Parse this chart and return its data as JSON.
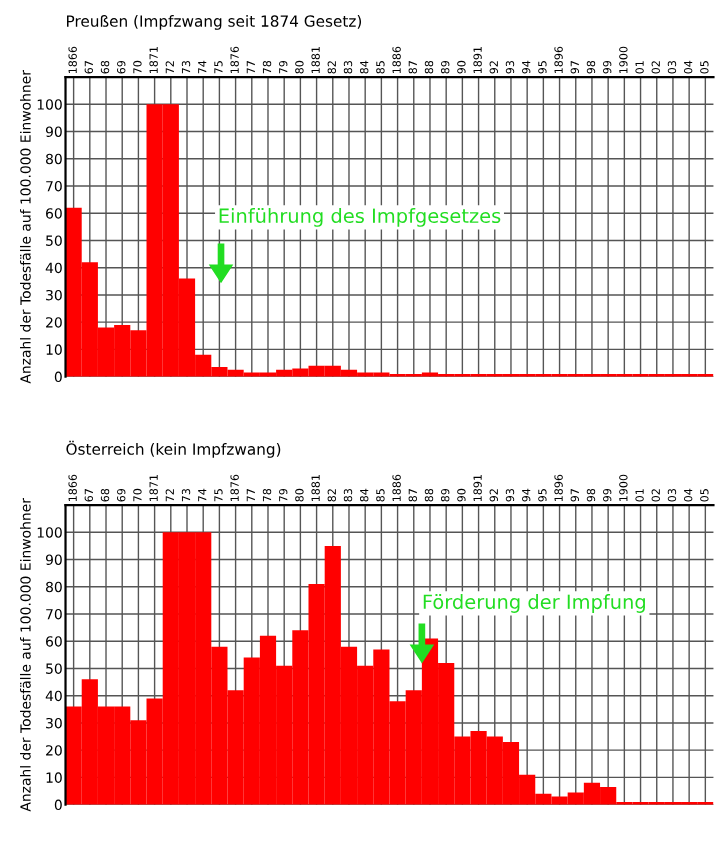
{
  "chart_data": [
    {
      "type": "bar",
      "title": "Preußen (Impfzwang seit 1874 Gesetz)",
      "ylabel": "Anzahl der Todesfälle auf 100.000 Einwohner",
      "categories": [
        "1866",
        "67",
        "68",
        "69",
        "70",
        "1871",
        "72",
        "73",
        "74",
        "75",
        "1876",
        "77",
        "78",
        "79",
        "80",
        "1881",
        "82",
        "83",
        "84",
        "85",
        "1886",
        "87",
        "88",
        "89",
        "90",
        "1891",
        "92",
        "93",
        "94",
        "95",
        "1896",
        "97",
        "98",
        "99",
        "1900",
        "01",
        "02",
        "03",
        "04",
        "05"
      ],
      "values": [
        62,
        42,
        18,
        19,
        17,
        100,
        100,
        36,
        8,
        3.5,
        2.5,
        1.5,
        1.5,
        2.5,
        3,
        4,
        4,
        2.5,
        1.5,
        1.5,
        1,
        1,
        1.5,
        1,
        1,
        1,
        1,
        1,
        1,
        1,
        1,
        1,
        1,
        1,
        1,
        1,
        1,
        1,
        1,
        1
      ],
      "color": "#ff0000",
      "ylim": [
        0,
        110
      ],
      "yticks": [
        0,
        10,
        20,
        30,
        40,
        50,
        60,
        70,
        80,
        90,
        100
      ],
      "grid": true,
      "annotations": [
        "Einführung des Impfgesetzes"
      ]
    },
    {
      "type": "bar",
      "title": "Österreich (kein Impfzwang)",
      "ylabel": "Anzahl der Todesfälle auf 100.000 Einwohner",
      "categories": [
        "1866",
        "67",
        "68",
        "69",
        "70",
        "1871",
        "72",
        "73",
        "74",
        "75",
        "1876",
        "77",
        "78",
        "79",
        "80",
        "1881",
        "82",
        "83",
        "84",
        "85",
        "1886",
        "87",
        "88",
        "89",
        "90",
        "1891",
        "92",
        "93",
        "94",
        "95",
        "1896",
        "97",
        "98",
        "99",
        "1900",
        "01",
        "02",
        "03",
        "04",
        "05"
      ],
      "values": [
        36,
        46,
        36,
        36,
        31,
        39,
        100,
        100,
        100,
        58,
        42,
        54,
        62,
        51,
        64,
        81,
        95,
        58,
        51,
        57,
        38,
        42,
        61,
        52,
        25,
        27,
        25,
        23,
        11,
        4,
        3,
        4.5,
        8,
        6.5,
        1,
        1,
        1,
        1,
        1,
        1
      ],
      "color": "#ff0000",
      "ylim": [
        0,
        110
      ],
      "yticks": [
        0,
        10,
        20,
        30,
        40,
        50,
        60,
        70,
        80,
        90,
        100
      ],
      "grid": true,
      "annotations": [
        "Förderung der Impfung"
      ]
    }
  ]
}
